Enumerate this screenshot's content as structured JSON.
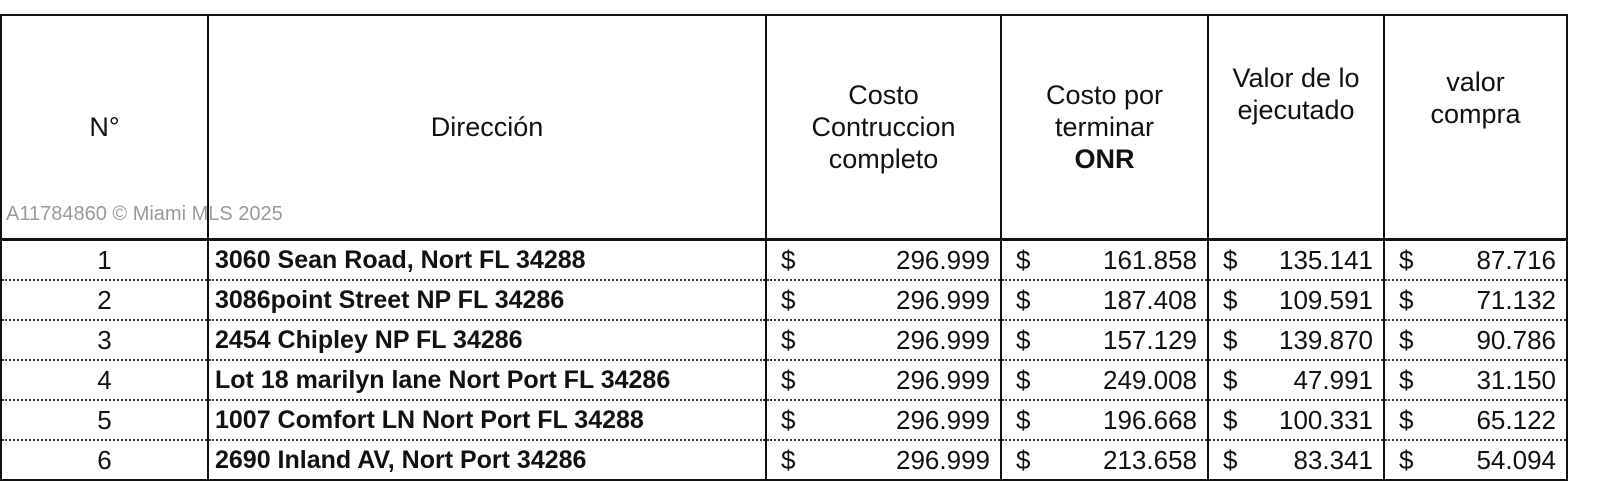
{
  "headers": {
    "n": "N°",
    "direccion": "Dirección",
    "costo_line1": "Costo",
    "costo_line2": "Contruccion",
    "costo_line3": "completo",
    "terminar_line1": "Costo  por",
    "terminar_line2": "terminar",
    "terminar_line3": "ONR",
    "ejecutado_line1": "Valor de lo",
    "ejecutado_line2": "ejecutado",
    "compra_line1": "valor",
    "compra_line2": "compra"
  },
  "currency_symbol": "$",
  "rows": [
    {
      "n": "1",
      "direccion": "3060 Sean Road, Nort FL 34288",
      "costo": "296.999",
      "terminar": "161.858",
      "ejecutado": "135.141",
      "compra": "87.716"
    },
    {
      "n": "2",
      "direccion": "3086point Street NP FL 34286",
      "costo": "296.999",
      "terminar": "187.408",
      "ejecutado": "109.591",
      "compra": "71.132"
    },
    {
      "n": "3",
      "direccion": "2454 Chipley NP FL 34286",
      "costo": "296.999",
      "terminar": "157.129",
      "ejecutado": "139.870",
      "compra": "90.786"
    },
    {
      "n": "4",
      "direccion": "Lot 18 marilyn lane Nort Port FL 34286",
      "costo": "296.999",
      "terminar": "249.008",
      "ejecutado": "47.991",
      "compra": "31.150"
    },
    {
      "n": "5",
      "direccion": "1007 Comfort LN Nort Port FL 34288",
      "costo": "296.999",
      "terminar": "196.668",
      "ejecutado": "100.331",
      "compra": "65.122"
    },
    {
      "n": "6",
      "direccion": "2690 Inland AV, Nort Port 34286",
      "costo": "296.999",
      "terminar": "213.658",
      "ejecutado": "83.341",
      "compra": "54.094"
    }
  ],
  "watermark": "A11784860 © Miami MLS 2025"
}
